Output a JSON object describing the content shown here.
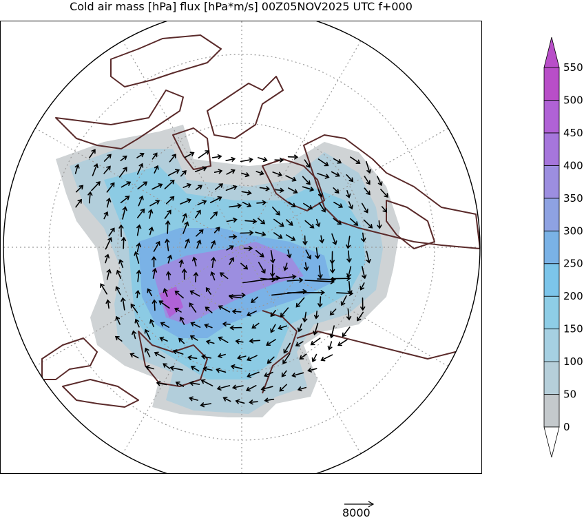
{
  "title": "Cold air mass [hPa] flux [hPa*m/s] 00Z05NOV2025 UTC f+000",
  "colorbar": {
    "levels": [
      0,
      50,
      100,
      150,
      200,
      250,
      300,
      350,
      400,
      450,
      500,
      550
    ],
    "labels": [
      "0",
      "50",
      "100",
      "150",
      "200",
      "250",
      "300",
      "350",
      "400",
      "450",
      "500",
      "550"
    ],
    "colors": [
      "#d4d4d4",
      "#c4c9cc",
      "#b6cfda",
      "#a6d0e2",
      "#8ecde6",
      "#7cc5ea",
      "#7ab2e6",
      "#8ea2e2",
      "#9c8ee0",
      "#a676dc",
      "#b062d6",
      "#b84ec8"
    ],
    "extend": "both"
  },
  "reference_vector": {
    "label": "8000"
  },
  "map": {
    "projection": "north polar stereographic",
    "gridlines": "dotted",
    "coastline_color": "#5a2a2a",
    "arrow_color": "#000000"
  }
}
